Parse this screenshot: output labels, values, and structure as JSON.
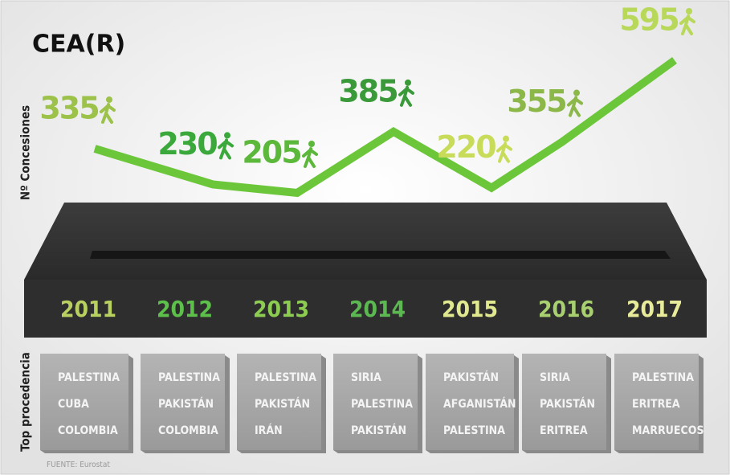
{
  "chart_data": {
    "type": "line",
    "title": "CEA(R)",
    "y_label": "Nº Concesiones",
    "categories": [
      "2011",
      "2012",
      "2013",
      "2014",
      "2015",
      "2016",
      "2017"
    ],
    "values": [
      335,
      230,
      205,
      385,
      220,
      355,
      595
    ],
    "color": "#6cc63a",
    "point_colors": [
      "#9cc24a",
      "#3aa83a",
      "#5cb83a",
      "#3a9a3a",
      "#c8dc5a",
      "#8cb84a",
      "#b8d85a"
    ],
    "year_colors": [
      "#b8d060",
      "#5cc04a",
      "#8ccc50",
      "#5cb850",
      "#e0e890",
      "#a8d070",
      "#e8ec9a"
    ],
    "origin_label": "Top procedencia",
    "origins": [
      [
        "PALESTINA",
        "CUBA",
        "COLOMBIA"
      ],
      [
        "PALESTINA",
        "PAKISTÁN",
        "COLOMBIA"
      ],
      [
        "PALESTINA",
        "PAKISTÁN",
        "IRÁN"
      ],
      [
        "SIRIA",
        "PALESTINA",
        "PAKISTÁN"
      ],
      [
        "PAKISTÁN",
        "AFGANISTÁN",
        "PALESTINA"
      ],
      [
        "SIRIA",
        "PAKISTÁN",
        "ERITREA"
      ],
      [
        "PALESTINA",
        "ERITREA",
        "MARRUECOS"
      ]
    ],
    "source": "FUENTE: Eurostat"
  }
}
